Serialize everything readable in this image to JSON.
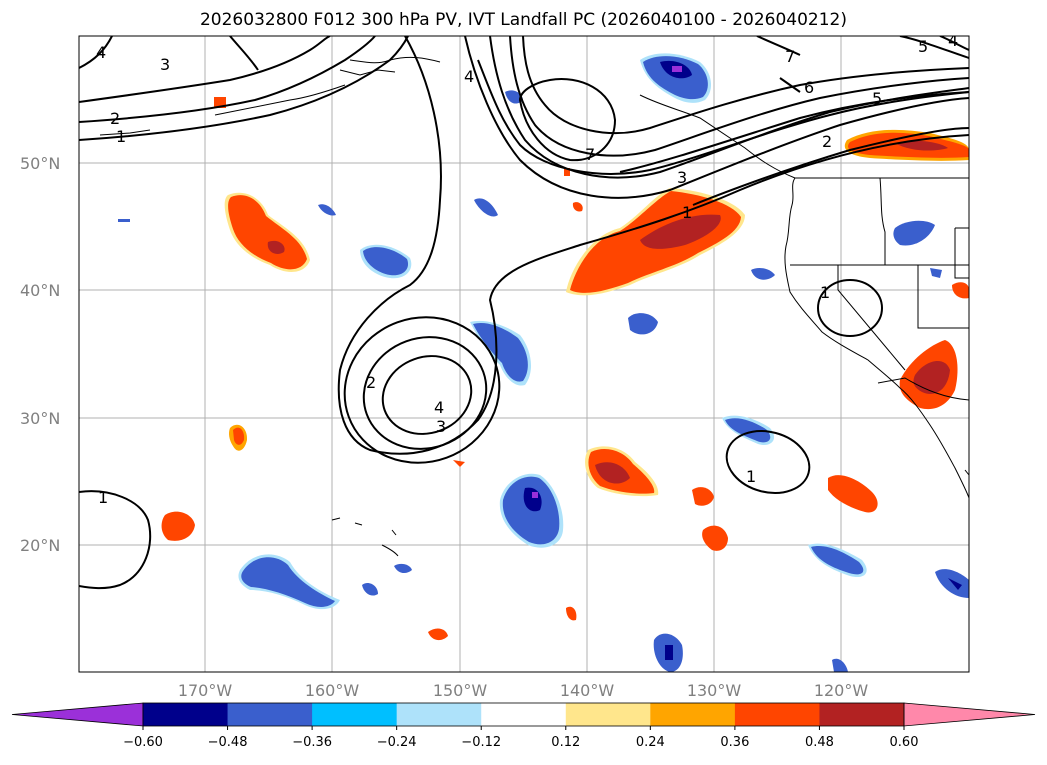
{
  "title": "2026032800 F012 300 hPa PV, IVT Landfall PC (2026040100 - 2026040212)",
  "map": {
    "lat_labels": [
      "50°N",
      "40°N",
      "30°N",
      "20°N"
    ],
    "lon_labels": [
      "170°W",
      "160°W",
      "150°W",
      "140°W",
      "130°W",
      "120°W"
    ],
    "contour_labels": [
      "4",
      "3",
      "2",
      "1",
      "7",
      "6",
      "5",
      "2",
      "1",
      "3",
      "1",
      "4",
      "2",
      "4",
      "3",
      "1",
      "1",
      "5",
      "4",
      "7"
    ]
  },
  "colorbar": {
    "colors": [
      "#9b30d9",
      "#00008b",
      "#3a5fcd",
      "#00bfff",
      "#aee2fa",
      "#ffffff",
      "#ffe68c",
      "#ffa500",
      "#ff4500",
      "#b22222",
      "#ff88aa"
    ],
    "tick_labels": [
      "−0.60",
      "−0.48",
      "−0.36",
      "−0.24",
      "−0.12",
      "0.12",
      "0.24",
      "0.36",
      "0.48",
      "0.60"
    ]
  },
  "legend_colors": {
    "positive_strong": "#b22222",
    "positive": "#ff4500",
    "positive_weak": "#ffa500",
    "negative": "#3a5fcd",
    "negative_strong": "#00008b",
    "negative_weak": "#00bfff"
  }
}
